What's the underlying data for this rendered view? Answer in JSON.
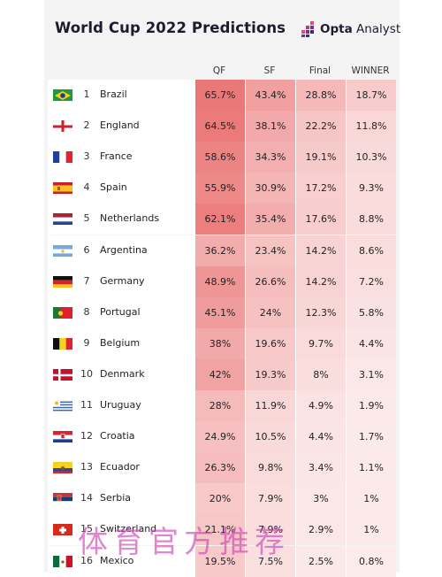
{
  "header": {
    "title": "World Cup 2022 Predictions",
    "brand_bold": "Opta",
    "brand_light": " Analyst"
  },
  "colors": {
    "heat_high": "#e96a6a",
    "heat_low": "#fbeaea",
    "title": "#1c1c2e",
    "brand_mark": "#7b2d8e"
  },
  "watermark": "体育官方推荐",
  "chart_data": {
    "type": "table",
    "columns": [
      "QF",
      "SF",
      "Final",
      "WINNER"
    ],
    "rows": [
      {
        "rank": "1",
        "team": "Brazil",
        "flag": "brazil-flag-icon",
        "values": [
          "65.7%",
          "43.4%",
          "28.8%",
          "18.7%"
        ],
        "numeric": [
          65.7,
          43.4,
          28.8,
          18.7
        ]
      },
      {
        "rank": "2",
        "team": "England",
        "flag": "england-flag-icon",
        "values": [
          "64.5%",
          "38.1%",
          "22.2%",
          "11.8%"
        ],
        "numeric": [
          64.5,
          38.1,
          22.2,
          11.8
        ]
      },
      {
        "rank": "3",
        "team": "France",
        "flag": "france-flag-icon",
        "values": [
          "58.6%",
          "34.3%",
          "19.1%",
          "10.3%"
        ],
        "numeric": [
          58.6,
          34.3,
          19.1,
          10.3
        ]
      },
      {
        "rank": "4",
        "team": "Spain",
        "flag": "spain-flag-icon",
        "values": [
          "55.9%",
          "30.9%",
          "17.2%",
          "9.3%"
        ],
        "numeric": [
          55.9,
          30.9,
          17.2,
          9.3
        ]
      },
      {
        "rank": "5",
        "team": "Netherlands",
        "flag": "netherlands-flag-icon",
        "values": [
          "62.1%",
          "35.4%",
          "17.6%",
          "8.8%"
        ],
        "numeric": [
          62.1,
          35.4,
          17.6,
          8.8
        ]
      },
      {
        "rank": "6",
        "team": "Argentina",
        "flag": "argentina-flag-icon",
        "values": [
          "36.2%",
          "23.4%",
          "14.2%",
          "8.6%"
        ],
        "numeric": [
          36.2,
          23.4,
          14.2,
          8.6
        ]
      },
      {
        "rank": "7",
        "team": "Germany",
        "flag": "germany-flag-icon",
        "values": [
          "48.9%",
          "26.6%",
          "14.2%",
          "7.2%"
        ],
        "numeric": [
          48.9,
          26.6,
          14.2,
          7.2
        ]
      },
      {
        "rank": "8",
        "team": "Portugal",
        "flag": "portugal-flag-icon",
        "values": [
          "45.1%",
          "24%",
          "12.3%",
          "5.8%"
        ],
        "numeric": [
          45.1,
          24,
          12.3,
          5.8
        ]
      },
      {
        "rank": "9",
        "team": "Belgium",
        "flag": "belgium-flag-icon",
        "values": [
          "38%",
          "19.6%",
          "9.7%",
          "4.4%"
        ],
        "numeric": [
          38,
          19.6,
          9.7,
          4.4
        ]
      },
      {
        "rank": "10",
        "team": "Denmark",
        "flag": "denmark-flag-icon",
        "values": [
          "42%",
          "19.3%",
          "8%",
          "3.1%"
        ],
        "numeric": [
          42,
          19.3,
          8,
          3.1
        ]
      },
      {
        "rank": "11",
        "team": "Uruguay",
        "flag": "uruguay-flag-icon",
        "values": [
          "28%",
          "11.9%",
          "4.9%",
          "1.9%"
        ],
        "numeric": [
          28,
          11.9,
          4.9,
          1.9
        ]
      },
      {
        "rank": "12",
        "team": "Croatia",
        "flag": "croatia-flag-icon",
        "values": [
          "24.9%",
          "10.5%",
          "4.4%",
          "1.7%"
        ],
        "numeric": [
          24.9,
          10.5,
          4.4,
          1.7
        ]
      },
      {
        "rank": "13",
        "team": "Ecuador",
        "flag": "ecuador-flag-icon",
        "values": [
          "26.3%",
          "9.8%",
          "3.4%",
          "1.1%"
        ],
        "numeric": [
          26.3,
          9.8,
          3.4,
          1.1
        ]
      },
      {
        "rank": "14",
        "team": "Serbia",
        "flag": "serbia-flag-icon",
        "values": [
          "20%",
          "7.9%",
          "3%",
          "1%"
        ],
        "numeric": [
          20,
          7.9,
          3,
          1
        ]
      },
      {
        "rank": "15",
        "team": "Switzerland",
        "flag": "switzerland-flag-icon",
        "values": [
          "21.1%",
          "7.9%",
          "2.9%",
          "1%"
        ],
        "numeric": [
          21.1,
          7.9,
          2.9,
          1
        ]
      },
      {
        "rank": "16",
        "team": "Mexico",
        "flag": "mexico-flag-icon",
        "values": [
          "19.5%",
          "7.5%",
          "2.5%",
          "0.8%"
        ],
        "numeric": [
          19.5,
          7.5,
          2.5,
          0.8
        ]
      }
    ]
  }
}
